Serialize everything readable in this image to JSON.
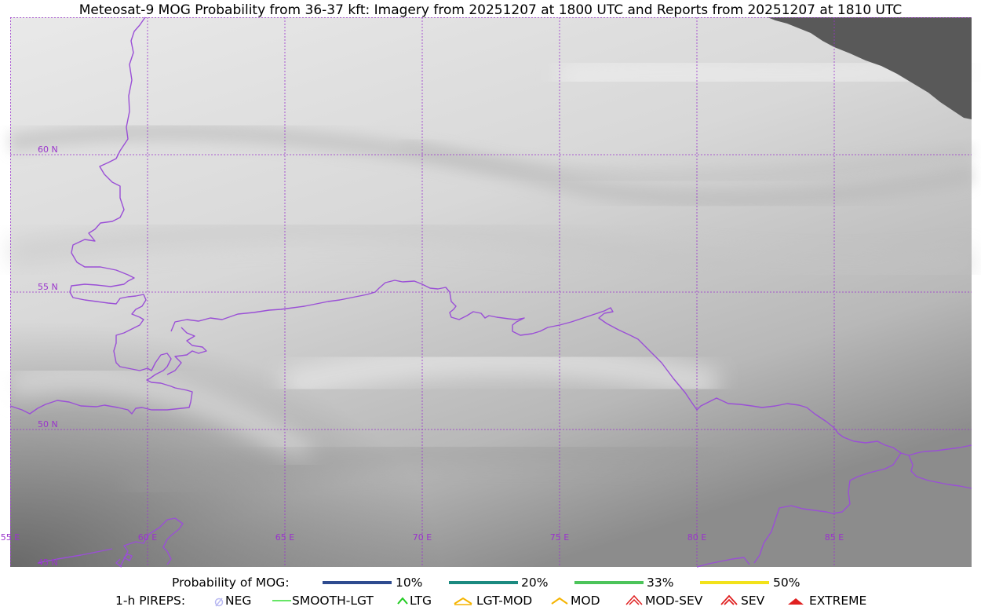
{
  "title": "Meteosat-9 MOG Probability from 36-37 kft: Imagery from 20251207 at 1800 UTC and Reports from 20251207 at 1810 UTC",
  "map": {
    "graticule_color": "#9a33cc",
    "border_color": "#9a4fd6",
    "nodata_color": "#595959",
    "lat_labels": [
      "60 N",
      "55 N",
      "50 N",
      "45 N"
    ],
    "lon_labels": [
      "55 E",
      "60 E",
      "65 E",
      "70 E",
      "75 E",
      "80 E",
      "85 E"
    ]
  },
  "legend": {
    "prob_label": "Probability of MOG:",
    "prob_items": [
      {
        "label": "10%",
        "color": "#2e4b8f"
      },
      {
        "label": "20%",
        "color": "#1b8a80"
      },
      {
        "label": "33%",
        "color": "#4cc45a"
      },
      {
        "label": "50%",
        "color": "#f2e21a"
      }
    ],
    "pirep_label": "1-h PIREPS:",
    "pirep_items": [
      {
        "label": "NEG",
        "color": "#b9b9f2",
        "icon": "neg-icon"
      },
      {
        "label": "SMOOTH-LGT",
        "color": "#33dd33",
        "icon": "smooth-lgt-line-icon"
      },
      {
        "label": "LTG",
        "color": "#22cc22",
        "icon": "ltg-caret-icon"
      },
      {
        "label": "LGT-MOD",
        "color": "#f5b400",
        "icon": "lgt-mod-caret-icon"
      },
      {
        "label": "MOD",
        "color": "#f5b400",
        "icon": "mod-caret-icon"
      },
      {
        "label": "MOD-SEV",
        "color": "#e02020",
        "icon": "mod-sev-caret-icon"
      },
      {
        "label": "SEV",
        "color": "#e02020",
        "icon": "sev-caret-icon"
      },
      {
        "label": "EXTREME",
        "color": "#e02020",
        "icon": "extreme-caret-icon"
      }
    ]
  }
}
